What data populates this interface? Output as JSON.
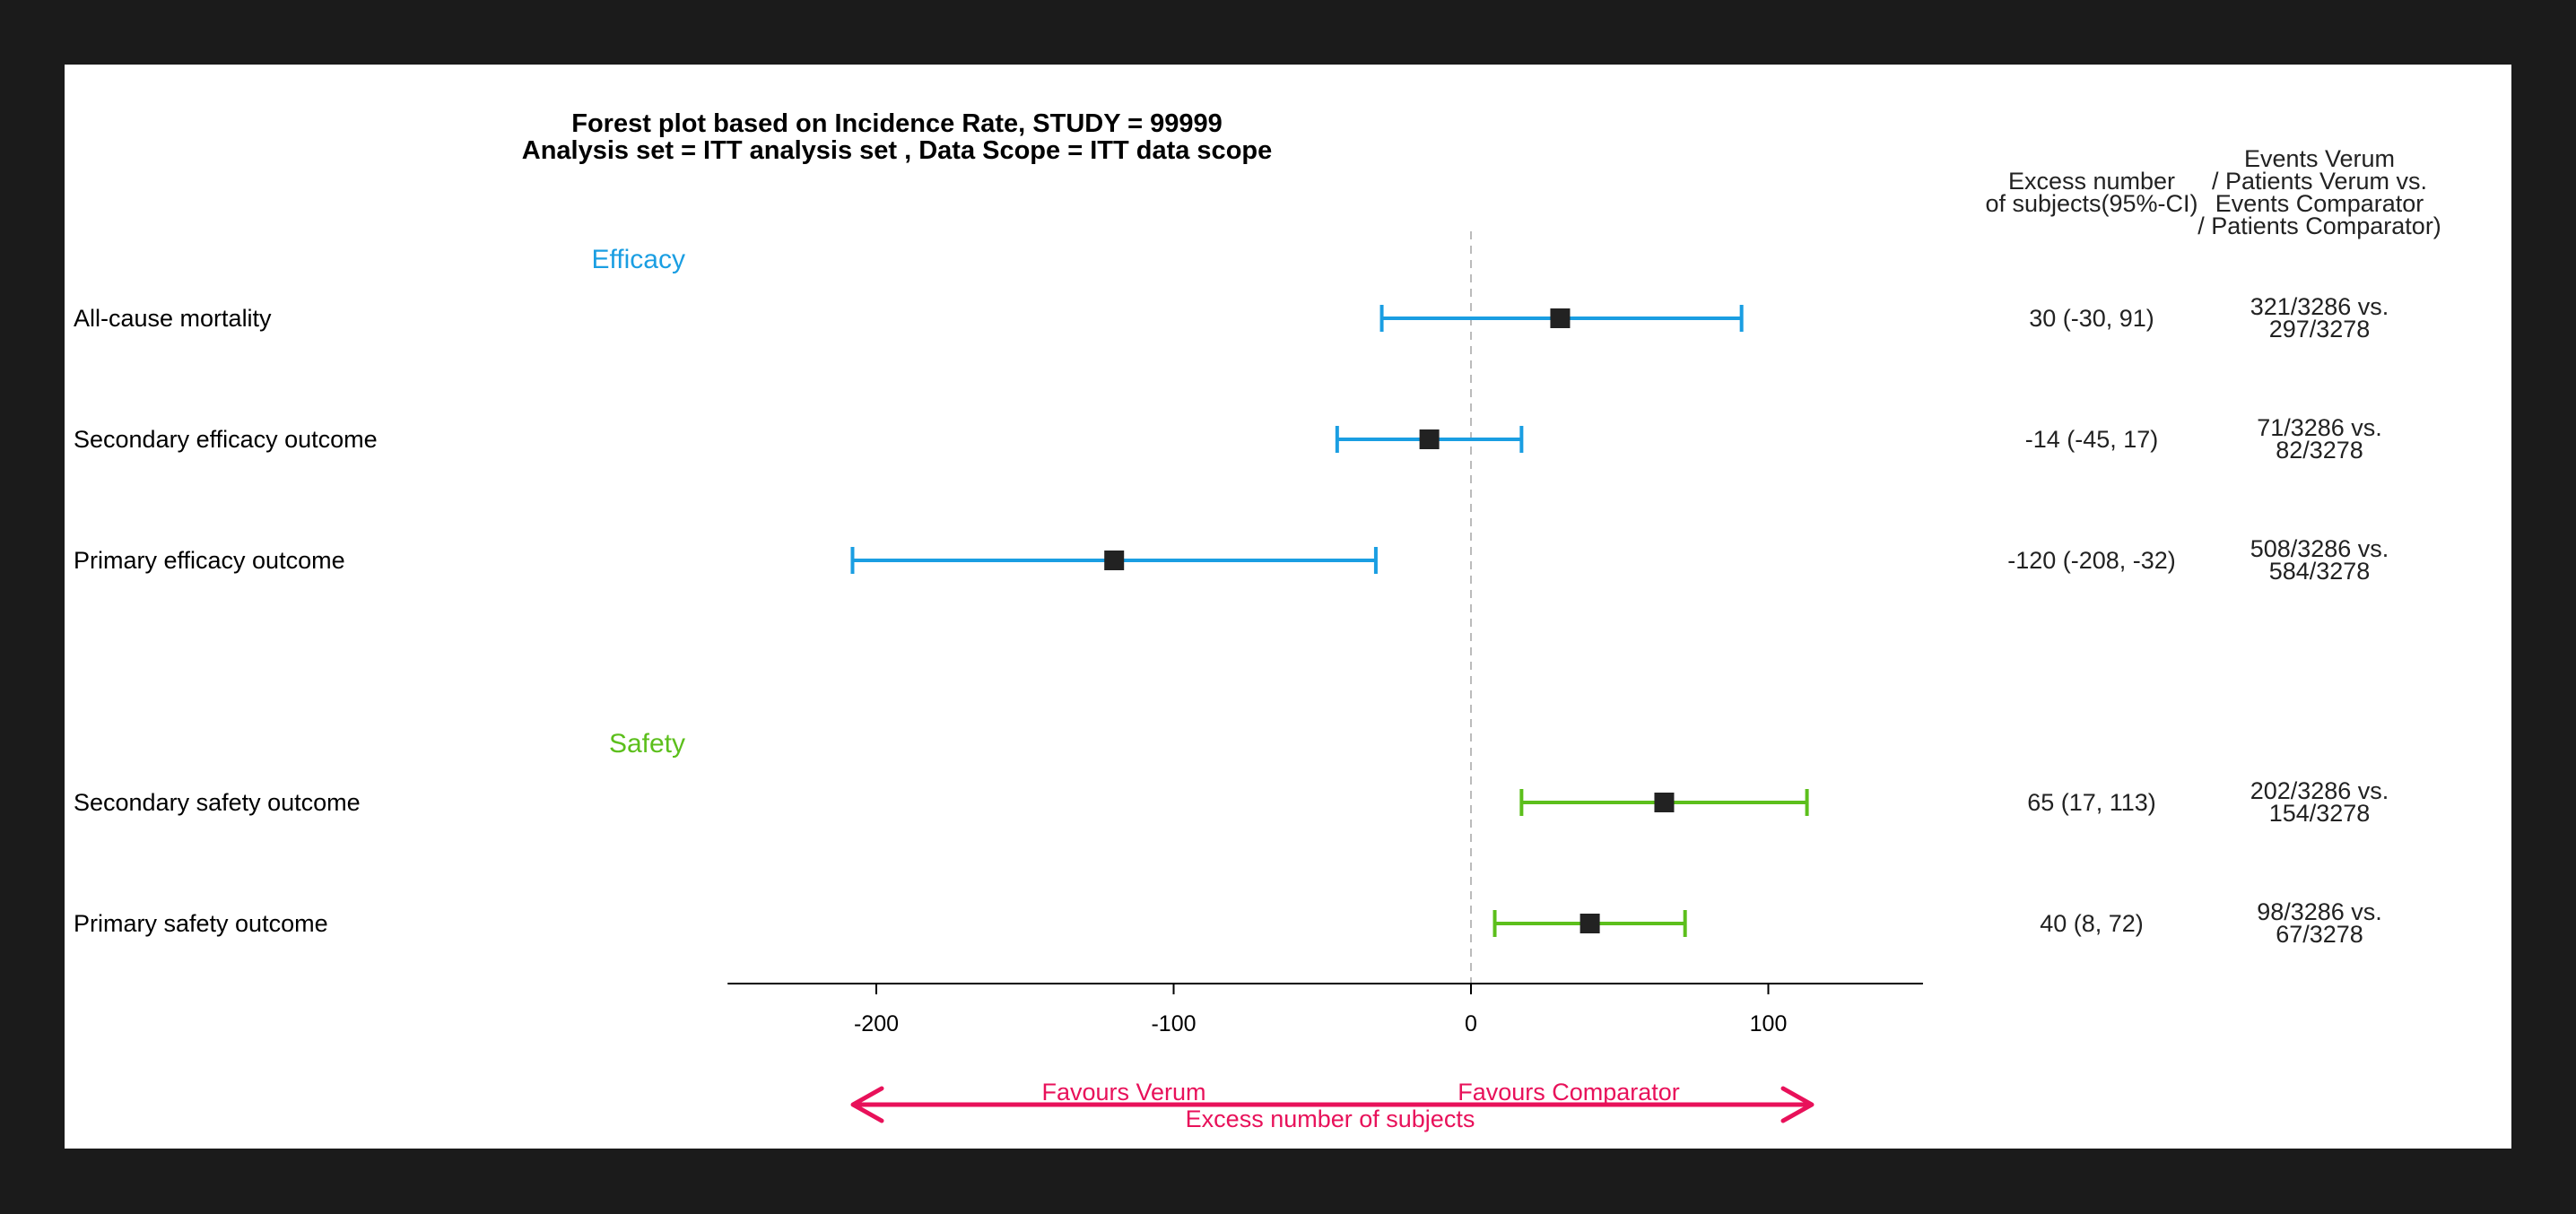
{
  "chart_data": {
    "type": "forest",
    "title": "Forest plot based on Incidence Rate, STUDY = 99999",
    "subtitle": "Analysis set = ITT analysis set , Data Scope = ITT data scope",
    "xlabel": "Excess number of subjects",
    "xlim": [
      -250,
      152
    ],
    "xticks": [
      -200,
      -100,
      0,
      100
    ],
    "reference_line": 0,
    "favours_left": "Favours Verum",
    "favours_right": "Favours Comparator",
    "column_headers": {
      "excess": [
        "Excess number",
        "of subjects(95%-CI)"
      ],
      "events": [
        "Events Verum",
        "/ Patients Verum vs.",
        "Events Comparator",
        "/ Patients Comparator)"
      ]
    },
    "groups": [
      {
        "name": "Efficacy",
        "color": "#1a9ee2",
        "rows": [
          {
            "label": "All-cause mortality",
            "estimate": 30,
            "lower": -30,
            "upper": 91,
            "ci_text": "30 (-30, 91)",
            "events": [
              "321/3286 vs.",
              "297/3278"
            ]
          },
          {
            "label": "Secondary efficacy outcome",
            "estimate": -14,
            "lower": -45,
            "upper": 17,
            "ci_text": "-14 (-45, 17)",
            "events": [
              "71/3286 vs.",
              "82/3278"
            ]
          },
          {
            "label": "Primary efficacy outcome",
            "estimate": -120,
            "lower": -208,
            "upper": -32,
            "ci_text": "-120 (-208, -32)",
            "events": [
              "508/3286 vs.",
              "584/3278"
            ]
          }
        ]
      },
      {
        "name": "Safety",
        "color": "#5cbf1c",
        "rows": [
          {
            "label": "Secondary safety outcome",
            "estimate": 65,
            "lower": 17,
            "upper": 113,
            "ci_text": "65 (17, 113)",
            "events": [
              "202/3286 vs.",
              "154/3278"
            ]
          },
          {
            "label": "Primary safety outcome",
            "estimate": 40,
            "lower": 8,
            "upper": 72,
            "ci_text": "40 (8, 72)",
            "events": [
              "98/3286 vs.",
              "67/3278"
            ]
          }
        ]
      }
    ],
    "colors": {
      "point": "#222222",
      "arrow": "#e8115a",
      "reference": "#bbbbbb",
      "axis": "#000000"
    }
  }
}
